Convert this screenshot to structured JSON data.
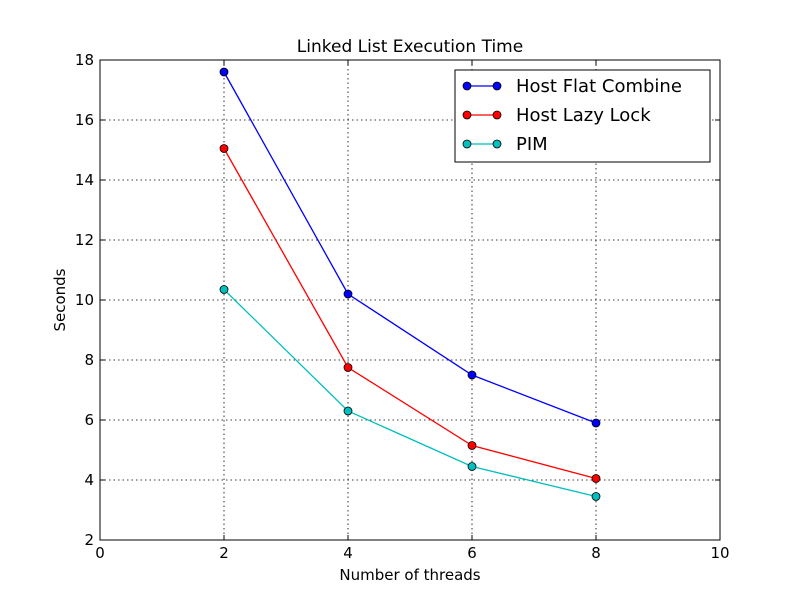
{
  "chart_data": {
    "type": "line",
    "title": "Linked List Execution Time",
    "xlabel": "Number of threads",
    "ylabel": "Seconds",
    "xlim": [
      0,
      10
    ],
    "ylim": [
      2,
      18
    ],
    "xticks": [
      0,
      2,
      4,
      6,
      8,
      10
    ],
    "yticks": [
      2,
      4,
      6,
      8,
      10,
      12,
      14,
      16,
      18
    ],
    "grid": true,
    "legend_position": "top-right",
    "x": [
      2,
      4,
      6,
      8
    ],
    "series": [
      {
        "name": "Host Flat Combine",
        "color": "#0000ff",
        "values": [
          17.6,
          10.2,
          7.5,
          5.9
        ]
      },
      {
        "name": "Host Lazy Lock",
        "color": "#ff0000",
        "values": [
          15.05,
          7.75,
          5.15,
          4.05
        ]
      },
      {
        "name": "PIM",
        "color": "#00bfbf",
        "values": [
          10.35,
          6.3,
          4.45,
          3.45
        ]
      }
    ]
  }
}
